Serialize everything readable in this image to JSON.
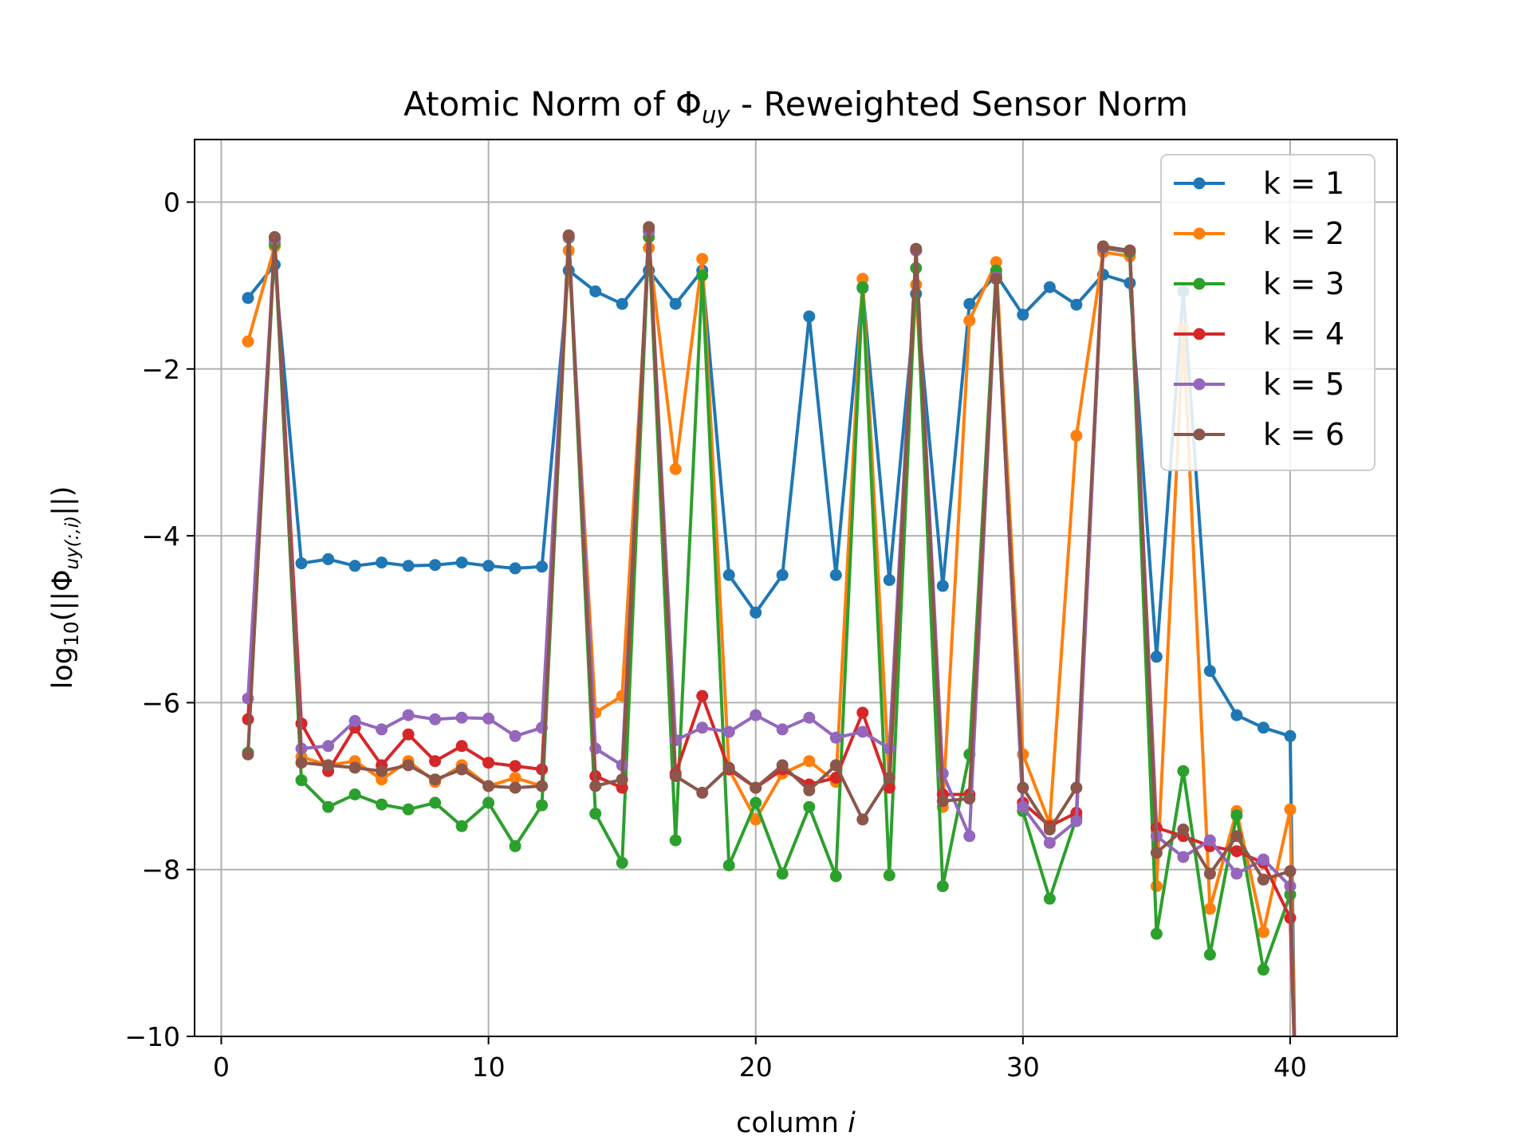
{
  "chart_data": {
    "type": "line",
    "title_prefix": "Atomic Norm of Φ",
    "title_sub": "uy",
    "title_suffix": " - Reweighted Sensor Norm",
    "xlabel_prefix": "column ",
    "xlabel_var": "i",
    "ylabel_prefix": "log",
    "ylabel_sub10": "10",
    "ylabel_mid": "(||Φ",
    "ylabel_sub": "uy(:,i)",
    "ylabel_end": "||)",
    "xlim": [
      -1,
      44
    ],
    "ylim": [
      -10,
      0.75
    ],
    "xticks": [
      0,
      10,
      20,
      30,
      40
    ],
    "yticks": [
      0,
      -2,
      -4,
      -6,
      -8,
      -10
    ],
    "ytick_labels": [
      "0",
      "−2",
      "−4",
      "−6",
      "−8",
      "−10"
    ],
    "grid": true,
    "legend_position": "top-right",
    "x": [
      1,
      2,
      3,
      4,
      5,
      6,
      7,
      8,
      9,
      10,
      11,
      12,
      13,
      14,
      15,
      16,
      17,
      18,
      19,
      20,
      21,
      22,
      23,
      24,
      25,
      26,
      27,
      28,
      29,
      30,
      31,
      32,
      33,
      34,
      35,
      36,
      37,
      38,
      39,
      40
    ],
    "series": [
      {
        "name": "k = 1",
        "color": "#1f77b4",
        "values": [
          -1.15,
          -0.75,
          -4.33,
          -4.28,
          -4.36,
          -4.32,
          -4.36,
          -4.35,
          -4.32,
          -4.36,
          -4.39,
          -4.37,
          -0.82,
          -1.07,
          -1.22,
          -0.82,
          -1.22,
          -0.82,
          -4.47,
          -4.92,
          -4.47,
          -1.37,
          -4.47,
          -1.03,
          -4.53,
          -1.1,
          -4.6,
          -1.22,
          -0.87,
          -1.35,
          -1.02,
          -1.23,
          -0.87,
          -0.97,
          -5.45,
          -1.07,
          -5.62,
          -6.15,
          -6.3,
          -6.4
        ]
      },
      {
        "name": "k = 2",
        "color": "#ff7f0e",
        "values": [
          -1.67,
          -0.53,
          -6.65,
          -6.75,
          -6.7,
          -6.92,
          -6.7,
          -6.95,
          -6.75,
          -7.0,
          -6.9,
          -7.0,
          -0.58,
          -6.12,
          -5.92,
          -0.55,
          -3.2,
          -0.68,
          -6.8,
          -7.4,
          -6.85,
          -6.7,
          -6.95,
          -0.92,
          -7.0,
          -0.99,
          -7.25,
          -1.42,
          -0.72,
          -6.62,
          -7.45,
          -2.8,
          -0.6,
          -0.65,
          -8.2,
          -1.52,
          -8.47,
          -7.3,
          -8.75,
          -7.28
        ]
      },
      {
        "name": "k = 3",
        "color": "#2ca02c",
        "values": [
          -6.6,
          -0.5,
          -6.93,
          -7.25,
          -7.1,
          -7.22,
          -7.28,
          -7.2,
          -7.48,
          -7.2,
          -7.72,
          -7.23,
          -0.43,
          -7.33,
          -7.92,
          -0.42,
          -7.65,
          -0.88,
          -7.95,
          -7.2,
          -8.05,
          -7.25,
          -8.08,
          -1.02,
          -8.07,
          -0.79,
          -8.2,
          -6.62,
          -0.82,
          -7.3,
          -8.35,
          -7.38,
          -0.55,
          -0.6,
          -8.77,
          -6.82,
          -9.02,
          -7.35,
          -9.2,
          -8.3
        ]
      },
      {
        "name": "k = 4",
        "color": "#d62728",
        "values": [
          -6.2,
          -0.45,
          -6.25,
          -6.82,
          -6.3,
          -6.75,
          -6.38,
          -6.7,
          -6.52,
          -6.72,
          -6.76,
          -6.8,
          -0.42,
          -6.88,
          -7.02,
          -0.35,
          -6.85,
          -5.92,
          -6.8,
          -7.02,
          -6.8,
          -6.98,
          -6.9,
          -6.12,
          -7.02,
          -0.58,
          -7.1,
          -7.1,
          -0.9,
          -7.2,
          -7.48,
          -7.32,
          -0.55,
          -0.58,
          -7.5,
          -7.6,
          -7.72,
          -7.78,
          -7.92,
          -8.58
        ]
      },
      {
        "name": "k = 5",
        "color": "#9467bd",
        "values": [
          -5.95,
          -0.45,
          -6.55,
          -6.52,
          -6.22,
          -6.32,
          -6.15,
          -6.2,
          -6.18,
          -6.19,
          -6.4,
          -6.3,
          -0.42,
          -6.55,
          -6.75,
          -0.35,
          -6.45,
          -6.3,
          -6.35,
          -6.15,
          -6.32,
          -6.18,
          -6.42,
          -6.35,
          -6.55,
          -0.58,
          -6.85,
          -7.6,
          -0.9,
          -7.25,
          -7.68,
          -7.42,
          -0.55,
          -0.58,
          -7.6,
          -7.85,
          -7.65,
          -8.05,
          -7.88,
          -8.2
        ]
      },
      {
        "name": "k = 6",
        "color": "#8c564b",
        "values": [
          -6.62,
          -0.42,
          -6.72,
          -6.75,
          -6.78,
          -6.82,
          -6.75,
          -6.92,
          -6.8,
          -7.0,
          -7.02,
          -7.0,
          -0.4,
          -7.0,
          -6.92,
          -0.3,
          -6.88,
          -7.08,
          -6.78,
          -7.02,
          -6.75,
          -7.05,
          -6.75,
          -7.4,
          -6.9,
          -0.56,
          -7.18,
          -7.15,
          -0.92,
          -7.02,
          -7.52,
          -7.02,
          -0.53,
          -0.58,
          -7.8,
          -7.52,
          -8.05,
          -7.6,
          -8.12,
          -8.02
        ]
      }
    ]
  }
}
